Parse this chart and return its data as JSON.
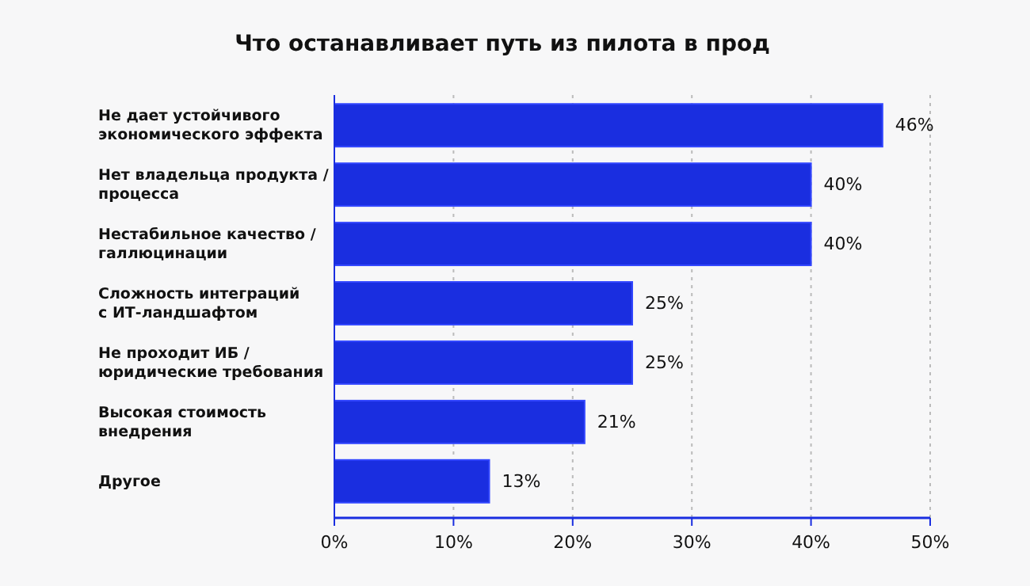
{
  "chart_data": {
    "type": "bar",
    "orientation": "horizontal",
    "title": "Что останавливает путь из пилота в прод",
    "categories": [
      "Не дает устойчивого экономического эффекта",
      "Нет владельца продукта / процесса",
      "Нестабильное качество / галлюцинации",
      "Сложность интеграций с ИТ-ландшафтом",
      "Не проходит ИБ / юридические требования",
      "Высокая стоимость внедрения",
      "Другое"
    ],
    "values": [
      46,
      40,
      40,
      25,
      25,
      21,
      13
    ],
    "value_labels": [
      "46%",
      "40%",
      "40%",
      "25%",
      "25%",
      "21%",
      "13%"
    ],
    "color": "#1a2ee0",
    "xlim": [
      0,
      50
    ],
    "xticks": [
      {
        "value": 0,
        "label": "0%"
      },
      {
        "value": 10,
        "label": "10%"
      },
      {
        "value": 20,
        "label": "20%"
      },
      {
        "value": 30,
        "label": "30%"
      },
      {
        "value": 40,
        "label": "40%"
      },
      {
        "value": 50,
        "label": "50%"
      }
    ],
    "grid": "x"
  }
}
